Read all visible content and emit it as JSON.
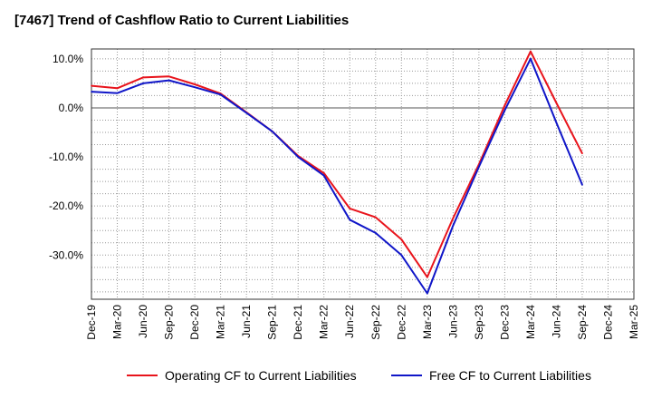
{
  "chart_data": {
    "type": "line",
    "title": "[7467]  Trend of Cashflow Ratio to Current Liabilities",
    "xlabel": "",
    "ylabel": "",
    "categories": [
      "Dec-19",
      "Mar-20",
      "Jun-20",
      "Sep-20",
      "Dec-20",
      "Mar-21",
      "Jun-21",
      "Sep-21",
      "Dec-21",
      "Mar-22",
      "Jun-22",
      "Sep-22",
      "Dec-22",
      "Mar-23",
      "Jun-23",
      "Sep-23",
      "Dec-23",
      "Mar-24",
      "Jun-24",
      "Sep-24",
      "Dec-24",
      "Mar-25"
    ],
    "ylim": [
      -39,
      12
    ],
    "yticks": [
      10,
      0,
      -10,
      -20,
      -30
    ],
    "ytick_labels": [
      "10.0%",
      "0.0%",
      "-10.0%",
      "-20.0%",
      "-30.0%"
    ],
    "grid": true,
    "legend_position": "bottom",
    "series": [
      {
        "name": "Operating CF to Current Liabilities",
        "color": "#e8141c",
        "values": [
          4.5,
          4.0,
          6.2,
          6.4,
          4.8,
          2.9,
          -0.9,
          -4.8,
          -9.8,
          -13.3,
          -20.5,
          -22.3,
          -26.8,
          -34.5,
          -22.5,
          -11.5,
          0.5,
          11.5,
          1.0,
          -9.3,
          null,
          null
        ]
      },
      {
        "name": "Free CF to Current Liabilities",
        "color": "#1016c8",
        "values": [
          3.3,
          3.0,
          5.0,
          5.6,
          4.2,
          2.7,
          -1.0,
          -4.8,
          -10.0,
          -13.8,
          -22.8,
          -25.5,
          -30.0,
          -37.8,
          -24.0,
          -12.0,
          -0.5,
          10.0,
          -3.0,
          -15.7,
          null,
          null
        ]
      }
    ]
  }
}
